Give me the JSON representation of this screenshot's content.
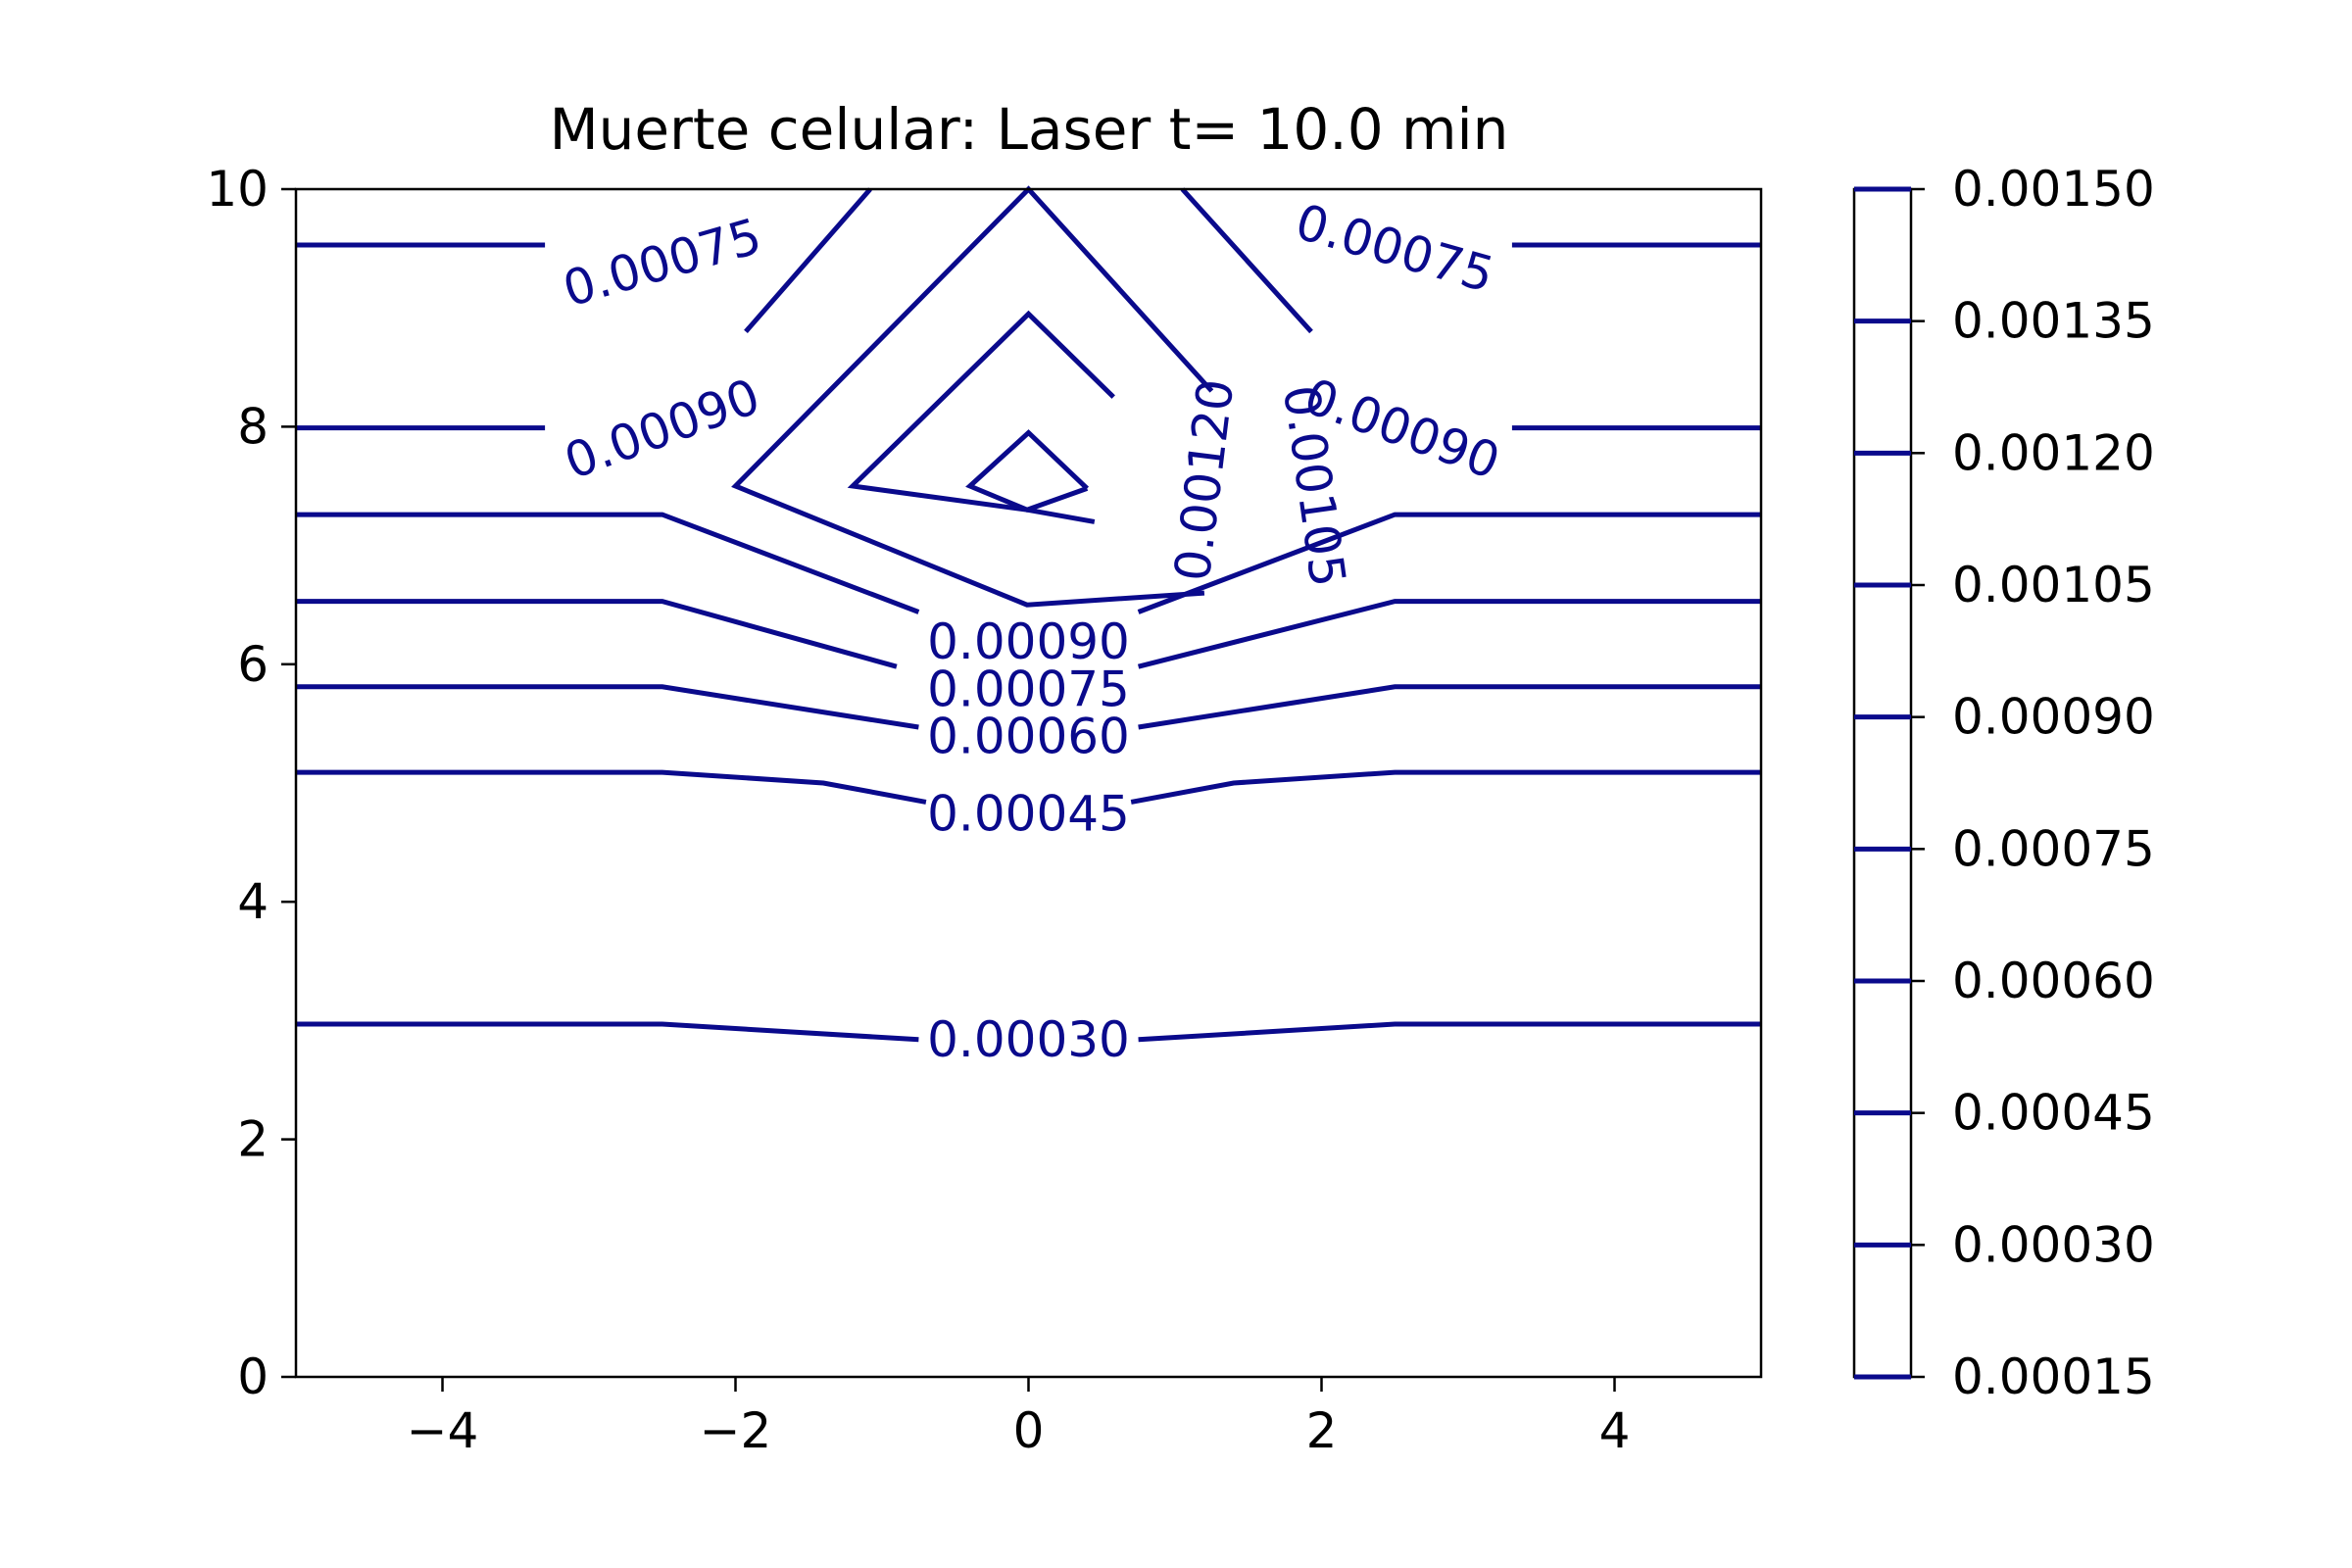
{
  "chart_data": {
    "type": "contour",
    "title": "Muerte celular: Laser t= 10.0 min",
    "xlabel": "",
    "ylabel": "",
    "xlim": [
      -5,
      5
    ],
    "ylim": [
      0,
      10
    ],
    "x_ticks": [
      -4,
      -2,
      0,
      2,
      4
    ],
    "x_tick_labels": [
      "−4",
      "−2",
      "0",
      "2",
      "4"
    ],
    "y_ticks": [
      0,
      2,
      4,
      6,
      8,
      10
    ],
    "y_tick_labels": [
      "0",
      "2",
      "4",
      "6",
      "8",
      "10"
    ],
    "line_color": "#0a0a8c",
    "grid": false,
    "levels": [
      {
        "level": 0.0003,
        "segments": [
          [
            [
              -5,
              2.97
            ],
            [
              -2.5,
              2.97
            ],
            [
              -0.75,
              2.84
            ]
          ],
          [
            [
              0.75,
              2.84
            ],
            [
              2.5,
              2.97
            ],
            [
              5,
              2.97
            ]
          ]
        ]
      },
      {
        "level": 0.00045,
        "segments": [
          [
            [
              -5,
              5.09
            ],
            [
              -2.5,
              5.09
            ],
            [
              -1.4,
              5.0
            ],
            [
              -0.7,
              4.84
            ]
          ],
          [
            [
              0.7,
              4.84
            ],
            [
              1.4,
              5.0
            ],
            [
              2.5,
              5.09
            ],
            [
              5,
              5.09
            ]
          ]
        ]
      },
      {
        "level": 0.0006,
        "segments": [
          [
            [
              -5,
              5.81
            ],
            [
              -2.5,
              5.81
            ],
            [
              -0.75,
              5.47
            ]
          ],
          [
            [
              0.75,
              5.47
            ],
            [
              2.5,
              5.81
            ],
            [
              5,
              5.81
            ]
          ]
        ]
      },
      {
        "level": 0.00075,
        "segments": [
          [
            [
              -5,
              6.53
            ],
            [
              -2.5,
              6.53
            ],
            [
              -0.9,
              5.98
            ]
          ],
          [
            [
              0.75,
              5.98
            ],
            [
              2.5,
              6.53
            ],
            [
              5,
              6.53
            ]
          ],
          [
            [
              -5,
              9.53
            ],
            [
              -3.3,
              9.53
            ]
          ],
          [
            [
              3.3,
              9.53
            ],
            [
              5,
              9.53
            ]
          ],
          [
            [
              -1.93,
              8.8
            ],
            [
              -1.08,
              10
            ]
          ],
          [
            [
              1.05,
              10
            ],
            [
              1.93,
              8.8
            ]
          ]
        ]
      },
      {
        "level": 0.0009,
        "segments": [
          [
            [
              -5,
              7.26
            ],
            [
              -2.5,
              7.26
            ],
            [
              -0.75,
              6.44
            ]
          ],
          [
            [
              0.75,
              6.44
            ],
            [
              2.5,
              7.26
            ],
            [
              5,
              7.26
            ]
          ],
          [
            [
              -5,
              7.99
            ],
            [
              -3.3,
              7.99
            ]
          ],
          [
            [
              3.3,
              7.99
            ],
            [
              5,
              7.99
            ]
          ]
        ]
      },
      {
        "level": 0.00105,
        "segments": [
          [
            [
              1.2,
              6.6
            ],
            [
              -0.01,
              6.5
            ],
            [
              -2.0,
              7.5
            ],
            [
              0,
              10
            ],
            [
              1.25,
              8.3
            ]
          ]
        ]
      },
      {
        "level": 0.0012,
        "segments": [
          [
            [
              0.45,
              7.2
            ],
            [
              -0.01,
              7.3
            ],
            [
              -1.2,
              7.5
            ],
            [
              0,
              8.95
            ],
            [
              0.58,
              8.25
            ]
          ]
        ]
      },
      {
        "level": 0.00135,
        "segments": [
          [
            [
              0.4,
              7.48
            ],
            [
              -0.01,
              7.3
            ],
            [
              -0.4,
              7.5
            ],
            [
              0,
              7.95
            ],
            [
              0.4,
              7.48
            ]
          ]
        ]
      }
    ],
    "contour_labels": [
      {
        "text": "0.00030",
        "x": 0,
        "y": 2.84,
        "rotation": 0
      },
      {
        "text": "0.00045",
        "x": 0,
        "y": 4.74,
        "rotation": 0
      },
      {
        "text": "0.00060",
        "x": 0,
        "y": 5.39,
        "rotation": 0
      },
      {
        "text": "0.00075",
        "x": 0,
        "y": 5.79,
        "rotation": 0
      },
      {
        "text": "0.00090",
        "x": 0,
        "y": 6.19,
        "rotation": 0
      },
      {
        "text": "0.00075",
        "x": -2.5,
        "y": 9.38,
        "rotation": -16
      },
      {
        "text": "0.00075",
        "x": 2.5,
        "y": 9.5,
        "rotation": 16
      },
      {
        "text": "0.00090",
        "x": -2.5,
        "y": 7.98,
        "rotation": -20
      },
      {
        "text": "0.00090",
        "x": 2.55,
        "y": 7.98,
        "rotation": 20
      },
      {
        "text": "0.00120",
        "x": 1.2,
        "y": 7.55,
        "rotation": -83
      },
      {
        "text": "0.00105",
        "x": 1.95,
        "y": 7.5,
        "rotation": 82
      }
    ],
    "colorbar": {
      "ticks": [
        "0.00015",
        "0.00030",
        "0.00045",
        "0.00060",
        "0.00075",
        "0.00090",
        "0.00105",
        "0.00120",
        "0.00135",
        "0.00150"
      ],
      "values": [
        0.00015,
        0.0003,
        0.00045,
        0.0006,
        0.00075,
        0.0009,
        0.00105,
        0.0012,
        0.00135,
        0.0015
      ]
    }
  }
}
